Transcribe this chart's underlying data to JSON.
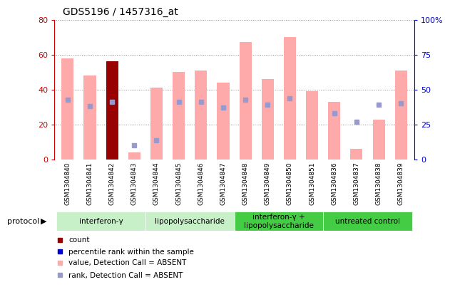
{
  "title": "GDS5196 / 1457316_at",
  "samples": [
    "GSM1304840",
    "GSM1304841",
    "GSM1304842",
    "GSM1304843",
    "GSM1304844",
    "GSM1304845",
    "GSM1304846",
    "GSM1304847",
    "GSM1304848",
    "GSM1304849",
    "GSM1304850",
    "GSM1304851",
    "GSM1304836",
    "GSM1304837",
    "GSM1304838",
    "GSM1304839"
  ],
  "pink_bar_heights": [
    58,
    48,
    56,
    4,
    41,
    50,
    51,
    44,
    67,
    46,
    70,
    39,
    33,
    6,
    23,
    51
  ],
  "blue_square_values": [
    43,
    38,
    41,
    10,
    14,
    41,
    41,
    37,
    43,
    39,
    44,
    null,
    33,
    27,
    39,
    40
  ],
  "red_bar_index": 2,
  "red_bar_height": 56,
  "ylim_left": [
    0,
    80
  ],
  "ylim_right": [
    0,
    100
  ],
  "yticks_left": [
    0,
    20,
    40,
    60,
    80
  ],
  "yticks_right": [
    0,
    25,
    50,
    75,
    100
  ],
  "ytick_labels_right": [
    "0",
    "25",
    "50",
    "75",
    "100%"
  ],
  "left_tick_color": "#cc0000",
  "right_tick_color": "#0000cc",
  "pink_bar_color": "#ffaaaa",
  "blue_sq_color": "#9999cc",
  "red_bar_color": "#990000",
  "grid_color": "#888888",
  "bg_xtick": "#cccccc",
  "group_boundaries": [
    {
      "start": 0,
      "end": 3,
      "label": "interferon-γ",
      "color": "#c8f0c8"
    },
    {
      "start": 4,
      "end": 7,
      "label": "lipopolysaccharide",
      "color": "#c8f0c8"
    },
    {
      "start": 8,
      "end": 11,
      "label": "interferon-γ +\nlipopolysaccharide",
      "color": "#44cc44"
    },
    {
      "start": 12,
      "end": 15,
      "label": "untreated control",
      "color": "#44cc44"
    }
  ]
}
